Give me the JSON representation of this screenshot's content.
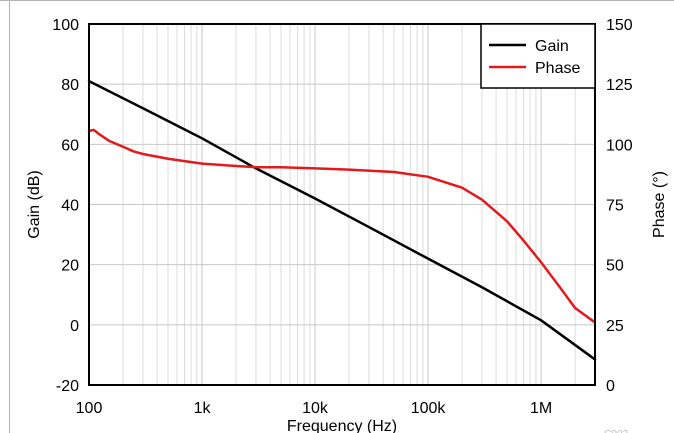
{
  "chart_data": {
    "type": "line",
    "title": "",
    "xlabel": "Frequency (Hz)",
    "ylabel": "Gain (dB)",
    "y2label": "Phase (°)",
    "xscale": "log",
    "xlim": [
      100,
      3000000
    ],
    "ylim": [
      -20,
      100
    ],
    "y2lim": [
      0,
      150
    ],
    "xticks": [
      100,
      1000,
      10000,
      100000,
      1000000
    ],
    "xtick_labels": [
      "100",
      "1k",
      "10k",
      "100k",
      "1M"
    ],
    "yticks": [
      -20,
      0,
      20,
      40,
      60,
      80,
      100
    ],
    "ytick_labels": [
      "-20",
      "0",
      "20",
      "40",
      "60",
      "80",
      "100"
    ],
    "y2ticks": [
      0,
      25,
      50,
      75,
      100,
      125,
      150
    ],
    "y2tick_labels": [
      "0",
      "25",
      "50",
      "75",
      "100",
      "125",
      "150"
    ],
    "grid": true,
    "legend_position": "top-right",
    "figure_id": "C002",
    "series": [
      {
        "name": "Gain",
        "axis": "left",
        "color": "#000000",
        "x": [
          100,
          300,
          1000,
          3000,
          10000,
          30000,
          100000,
          300000,
          1000000,
          3000000
        ],
        "y": [
          81,
          72,
          62,
          52,
          42,
          32.5,
          22,
          12.5,
          1.5,
          -11.5
        ]
      },
      {
        "name": "Phase",
        "axis": "right",
        "color": "#e31a1c",
        "x": [
          100,
          110,
          125,
          150,
          200,
          250,
          300,
          500,
          1000,
          2000,
          3000,
          5000,
          10000,
          20000,
          50000,
          100000,
          200000,
          300000,
          500000,
          700000,
          1000000,
          1500000,
          2000000,
          3000000
        ],
        "y": [
          105.5,
          106,
          104,
          101.5,
          99,
          97,
          96,
          94,
          92,
          91,
          90.5,
          90.5,
          90,
          89.5,
          88.5,
          86.5,
          82,
          77,
          68,
          60,
          51,
          40,
          32,
          26
        ]
      }
    ]
  }
}
